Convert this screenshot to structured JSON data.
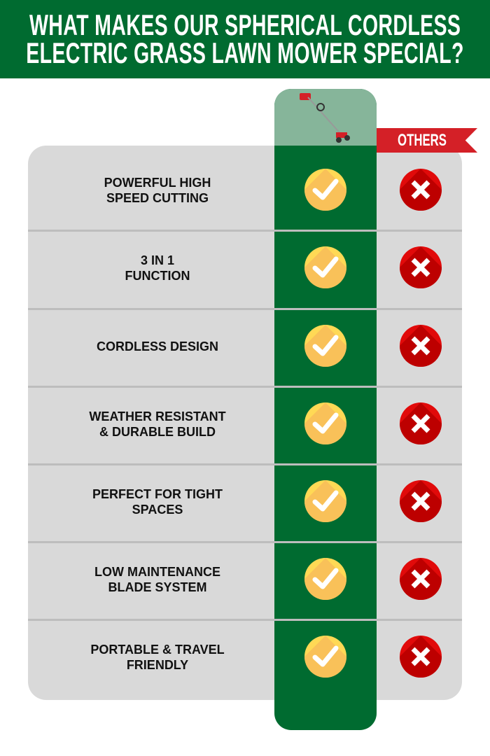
{
  "header": {
    "title_lines": [
      "WHAT MAKES OUR SPHERICAL CORDLESS",
      "ELECTRIC GRASS LAWN MOWER SPECIAL?"
    ]
  },
  "columns": {
    "product_image": "lawn-mower-product-image",
    "others_label": "OTHERS"
  },
  "colors": {
    "green": "#006B30",
    "light_green": "#86B59A",
    "red": "#D42027",
    "panel": "#D9D9D9",
    "check": "#FFD955",
    "cross": "#E10A0A"
  },
  "rows": [
    {
      "lines": [
        "POWERFUL HIGH",
        "SPEED CUTTING"
      ],
      "ours": "check-icon",
      "others": "cross-icon"
    },
    {
      "lines": [
        "3 IN 1",
        "FUNCTION"
      ],
      "ours": "check-icon",
      "others": "cross-icon"
    },
    {
      "lines": [
        "CORDLESS DESIGN"
      ],
      "ours": "check-icon",
      "others": "cross-icon"
    },
    {
      "lines": [
        "WEATHER RESISTANT",
        "& DURABLE BUILD"
      ],
      "ours": "check-icon",
      "others": "cross-icon"
    },
    {
      "lines": [
        "PERFECT FOR TIGHT",
        "SPACES"
      ],
      "ours": "check-icon",
      "others": "cross-icon"
    },
    {
      "lines": [
        "LOW MAINTENANCE",
        "BLADE SYSTEM"
      ],
      "ours": "check-icon",
      "others": "cross-icon"
    },
    {
      "lines": [
        "PORTABLE & TRAVEL",
        "FRIENDLY"
      ],
      "ours": "check-icon",
      "others": "cross-icon"
    }
  ]
}
